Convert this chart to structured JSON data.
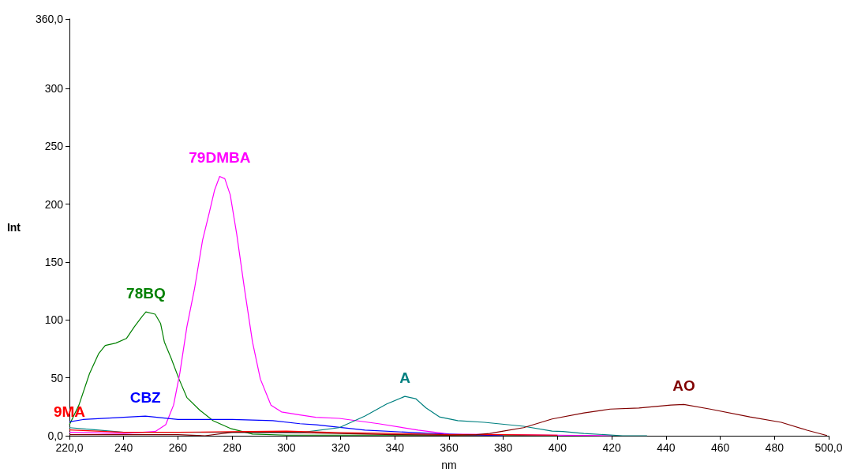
{
  "chart_data": {
    "type": "line",
    "xlabel": "nm",
    "ylabel": "Int",
    "xlim": [
      220,
      500
    ],
    "ylim": [
      0,
      360
    ],
    "xticks": [
      {
        "value": 220,
        "label": "220,0"
      },
      240,
      260,
      280,
      300,
      320,
      340,
      360,
      380,
      400,
      420,
      440,
      460,
      480,
      {
        "value": 500,
        "label": "500,0"
      }
    ],
    "yticks": [
      {
        "value": 0,
        "label": "0,0"
      },
      50,
      100,
      150,
      200,
      250,
      300,
      {
        "value": 360,
        "label": "360,0"
      }
    ],
    "grid": false,
    "legend": false,
    "marker": "none",
    "line_style": "solid",
    "series": [
      {
        "name": "78BQ",
        "color": "#008000",
        "x": [
          220,
          223.5,
          227.4,
          230.8,
          233.2,
          237.1,
          241,
          243.9,
          246.8,
          248.2,
          251.6,
          253.6,
          255,
          257.5,
          260.4,
          263.3,
          268.1,
          273,
          279.7,
          287.5,
          300,
          340,
          380,
          400
        ],
        "values": [
          9.5,
          26.5,
          53.7,
          71,
          78,
          80,
          84,
          94,
          103,
          107,
          105,
          97,
          81,
          67,
          49,
          33,
          22,
          13,
          6,
          1.4,
          0.5,
          0.5,
          0.5,
          0
        ]
      },
      {
        "name": "79DMBA",
        "color": "#ff00ff",
        "x": [
          220,
          240,
          251.6,
          255.5,
          258.4,
          260.7,
          263.3,
          266.2,
          269.1,
          271.5,
          273.5,
          275.4,
          277.3,
          279.3,
          281.7,
          284.6,
          287.5,
          290.4,
          294.3,
          298.2,
          305,
          310.8,
          319.5,
          334,
          348.6,
          360,
          400,
          420
        ],
        "values": [
          3,
          2,
          3.6,
          9.5,
          26.5,
          54,
          94,
          128,
          169,
          192,
          212,
          224,
          222,
          208,
          174,
          126,
          81,
          49,
          26.5,
          20.6,
          18,
          16,
          15,
          10.4,
          4.8,
          1.4,
          0.5,
          0
        ]
      },
      {
        "name": "CBZ",
        "color": "#0000ff",
        "x": [
          220,
          225,
          240,
          248,
          260,
          268,
          280,
          295,
          305,
          311,
          329,
          345,
          358,
          380
        ],
        "values": [
          12,
          14,
          16,
          17,
          14,
          14,
          14,
          13,
          10.4,
          9.5,
          4.8,
          3,
          1.4,
          0
        ]
      },
      {
        "name": "A",
        "color": "#008080",
        "x": [
          220,
          230,
          240,
          260,
          280,
          305,
          319.5,
          329,
          337,
          343.7,
          347.7,
          351.5,
          356.4,
          363.2,
          373,
          387.5,
          398,
          402,
          409.7,
          424,
          433
        ],
        "values": [
          7,
          5,
          3,
          3,
          3,
          2.7,
          7,
          17,
          27.4,
          34,
          32,
          24,
          16.3,
          13,
          11.6,
          8.2,
          4,
          3.6,
          2,
          0,
          0
        ]
      },
      {
        "name": "9MA",
        "color": "#ff0000",
        "x": [
          220,
          240,
          260,
          280,
          300,
          320,
          340,
          360,
          380,
          400
        ],
        "values": [
          5,
          3,
          3,
          3.5,
          4,
          2.7,
          2,
          1,
          1,
          0.5
        ]
      },
      {
        "name": "AO",
        "color": "#800000",
        "x": [
          220,
          260,
          270,
          280,
          300,
          340,
          360,
          370,
          375,
          380,
          387.5,
          398,
          409.7,
          419.4,
          430,
          441.8,
          446.6,
          456.3,
          470.9,
          482.5,
          492,
          499.4
        ],
        "values": [
          1,
          1,
          0,
          3,
          3,
          1,
          0.5,
          1,
          2,
          4,
          7,
          14.5,
          19.7,
          23,
          24,
          26.5,
          27,
          23,
          16.3,
          11.6,
          4.8,
          0.2
        ]
      }
    ]
  }
}
